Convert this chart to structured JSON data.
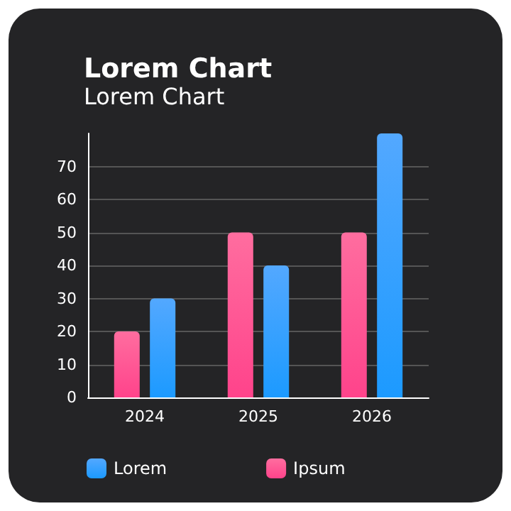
{
  "chart_data": {
    "type": "bar",
    "title": "Lorem Chart",
    "subtitle": "Lorem Chart",
    "categories": [
      "2024",
      "2025",
      "2026"
    ],
    "series": [
      {
        "name": "Ipsum",
        "color": "#ff3d7f",
        "values": [
          20,
          50,
          50
        ]
      },
      {
        "name": "Lorem",
        "color": "#1a8cff",
        "values": [
          30,
          40,
          80
        ]
      }
    ],
    "ylim": [
      0,
      80
    ],
    "yticks": [
      0,
      10,
      20,
      30,
      40,
      50,
      60,
      70
    ],
    "grid": "y",
    "legend": "bottom"
  }
}
